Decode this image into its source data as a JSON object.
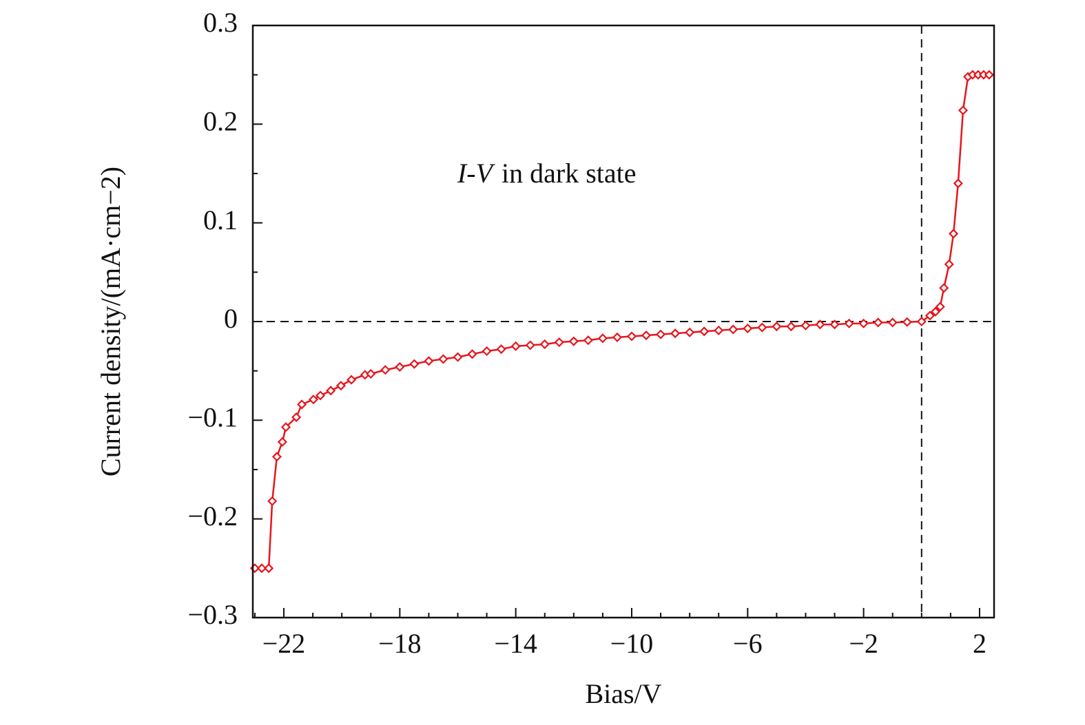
{
  "chart_data": {
    "type": "line",
    "xlabel": "Bias/V",
    "ylabel": "Current density/(mA·cm−2)",
    "annotation": [
      "I-V",
      "in dark state"
    ],
    "x": [
      -23.0,
      -22.76,
      -22.52,
      -22.4,
      -22.24,
      -22.05,
      -21.93,
      -21.57,
      -21.38,
      -20.98,
      -20.74,
      -20.38,
      -20.03,
      -19.67,
      -19.2,
      -19,
      -18.5,
      -18,
      -17.5,
      -17,
      -16.5,
      -16,
      -15.5,
      -15,
      -14.5,
      -14,
      -13.5,
      -13,
      -12.5,
      -12,
      -11.5,
      -11,
      -10.5,
      -10,
      -9.5,
      -9,
      -8.5,
      -8,
      -7.5,
      -7,
      -6.5,
      -6,
      -5.5,
      -5,
      -4.5,
      -4,
      -3.5,
      -3,
      -2.5,
      -2,
      -1.5,
      -1,
      -0.5,
      0,
      0.29,
      0.48,
      0.64,
      0.77,
      0.95,
      1.1,
      1.26,
      1.43,
      1.6,
      1.76,
      1.95,
      2.14,
      2.33
    ],
    "series": [
      {
        "name": "I-V",
        "color": "#e8141b",
        "values": [
          -0.25,
          -0.25,
          -0.25,
          -0.182,
          -0.137,
          -0.122,
          -0.107,
          -0.097,
          -0.084,
          -0.079,
          -0.075,
          -0.07,
          -0.065,
          -0.059,
          -0.054,
          -0.053,
          -0.049,
          -0.046,
          -0.043,
          -0.04,
          -0.038,
          -0.036,
          -0.033,
          -0.03,
          -0.028,
          -0.025,
          -0.024,
          -0.023,
          -0.021,
          -0.02,
          -0.019,
          -0.017,
          -0.016,
          -0.015,
          -0.014,
          -0.013,
          -0.012,
          -0.011,
          -0.01,
          -0.009,
          -0.008,
          -0.007,
          -0.006,
          -0.005,
          -0.005,
          -0.004,
          -0.003,
          -0.003,
          -0.002,
          -0.002,
          -0.001,
          -0.001,
          -0.0005,
          0,
          0.006,
          0.01,
          0.015,
          0.034,
          0.058,
          0.089,
          0.14,
          0.214,
          0.248,
          0.25,
          0.25,
          0.25,
          0.25
        ]
      }
    ],
    "xlim": [
      -23.07,
      2.5
    ],
    "ylim": [
      -0.3,
      0.3
    ],
    "xticks": [
      {
        "value": -22,
        "label": "−22"
      },
      {
        "value": -18,
        "label": "−18"
      },
      {
        "value": -14,
        "label": "−14"
      },
      {
        "value": -10,
        "label": "−10"
      },
      {
        "value": -6,
        "label": "−6"
      },
      {
        "value": -2,
        "label": "−2"
      },
      2
    ],
    "xticks_minor": [
      -23,
      -21,
      -20,
      -19,
      -17,
      -16,
      -15,
      -13,
      -12,
      -11,
      -9,
      -8,
      -7,
      -5,
      -4,
      -3,
      -1,
      0,
      1
    ],
    "yticks": [
      0.3,
      0.2,
      0.1,
      0,
      {
        "value": -0.1,
        "label": "−0.1"
      },
      {
        "value": -0.2,
        "label": "−0.2"
      },
      {
        "value": -0.3,
        "label": "−0.3"
      }
    ],
    "yticks_minor": [
      0.25,
      0.15,
      0.05,
      -0.05,
      -0.15,
      -0.25
    ],
    "reference_lines": {
      "x": 0,
      "y": 0
    },
    "grid": false
  }
}
